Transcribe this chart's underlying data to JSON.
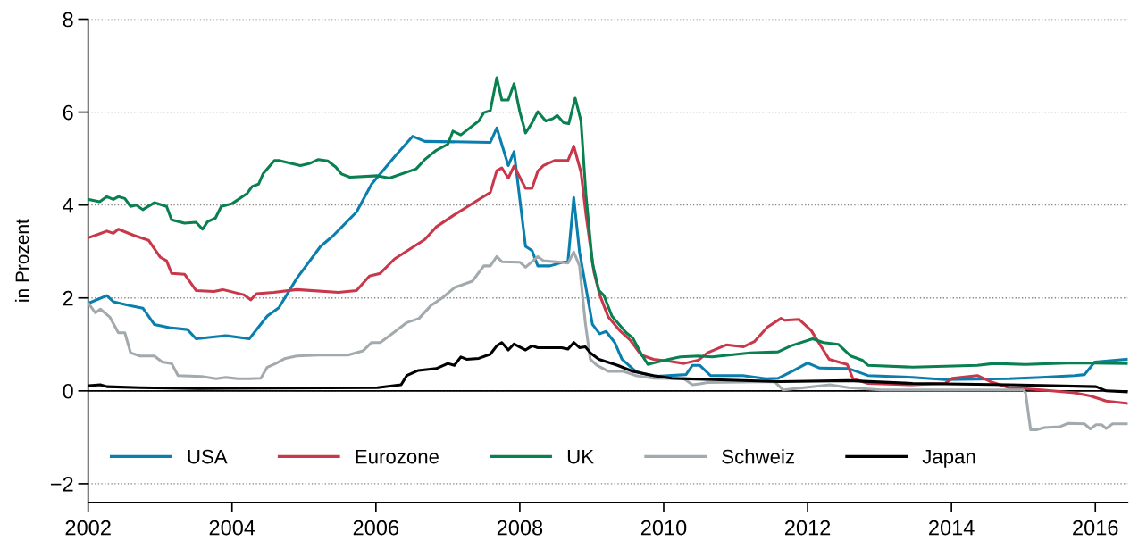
{
  "chart_data": {
    "type": "line",
    "ylabel": "in Prozent",
    "xlim": [
      2002,
      2016.45
    ],
    "ylim": [
      -2.4,
      8
    ],
    "xticks": [
      2002,
      2004,
      2006,
      2008,
      2010,
      2012,
      2014,
      2016
    ],
    "yticks": [
      {
        "value": -2,
        "label": "−2"
      },
      0,
      2,
      4,
      6,
      8
    ],
    "grid": "y",
    "legend": "bottom left",
    "line_style": "solid",
    "ref_lines": [
      {
        "axis": "y",
        "value": 0,
        "label": null,
        "color": "#000000",
        "line_style": "solid"
      }
    ],
    "series": [
      {
        "name": "USA",
        "color": "#0a7fae",
        "x": [
          2002.01,
          2002.26,
          2002.35,
          2002.59,
          2002.76,
          2002.92,
          2003.13,
          2003.38,
          2003.5,
          2003.91,
          2004.24,
          2004.49,
          2004.65,
          2004.9,
          2005.23,
          2005.4,
          2005.73,
          2005.94,
          2006.26,
          2006.51,
          2006.68,
          2007.59,
          2007.68,
          2007.84,
          2007.92,
          2008.08,
          2008.17,
          2008.25,
          2008.42,
          2008.67,
          2008.75,
          2008.83,
          2009.01,
          2009.11,
          2009.2,
          2009.32,
          2009.42,
          2009.61,
          2009.86,
          2010.31,
          2010.4,
          2010.5,
          2010.65,
          2011.1,
          2011.42,
          2011.59,
          2011.81,
          2012.0,
          2012.17,
          2012.57,
          2012.84,
          2013.46,
          2013.91,
          2014.8,
          2015.25,
          2015.71,
          2015.85,
          2015.99,
          2016.28,
          2016.45
        ],
        "values": [
          1.89,
          2.05,
          1.92,
          1.83,
          1.78,
          1.43,
          1.36,
          1.32,
          1.12,
          1.19,
          1.12,
          1.61,
          1.79,
          2.42,
          3.11,
          3.33,
          3.85,
          4.45,
          5.04,
          5.48,
          5.37,
          5.35,
          5.66,
          4.85,
          5.15,
          3.11,
          3.02,
          2.69,
          2.69,
          2.8,
          4.16,
          2.99,
          1.43,
          1.23,
          1.28,
          1.04,
          0.68,
          0.42,
          0.31,
          0.35,
          0.55,
          0.55,
          0.33,
          0.33,
          0.26,
          0.27,
          0.44,
          0.6,
          0.49,
          0.48,
          0.33,
          0.29,
          0.24,
          0.26,
          0.29,
          0.33,
          0.35,
          0.62,
          0.66,
          0.68
        ]
      },
      {
        "name": "Eurozone",
        "color": "#c8374a",
        "x": [
          2002.01,
          2002.14,
          2002.26,
          2002.35,
          2002.42,
          2002.63,
          2002.84,
          2003.0,
          2003.09,
          2003.16,
          2003.34,
          2003.5,
          2003.75,
          2003.87,
          2004.16,
          2004.26,
          2004.34,
          2004.58,
          2004.9,
          2005.48,
          2005.73,
          2005.91,
          2006.06,
          2006.26,
          2006.68,
          2006.84,
          2007.09,
          2007.43,
          2007.59,
          2007.68,
          2007.75,
          2007.84,
          2007.92,
          2008.08,
          2008.17,
          2008.25,
          2008.33,
          2008.49,
          2008.67,
          2008.75,
          2008.85,
          2008.92,
          2009.03,
          2009.11,
          2009.23,
          2009.4,
          2009.53,
          2009.69,
          2009.86,
          2010.07,
          2010.28,
          2010.48,
          2010.61,
          2010.87,
          2011.11,
          2011.26,
          2011.44,
          2011.63,
          2011.68,
          2011.88,
          2012.05,
          2012.3,
          2012.55,
          2012.63,
          2012.84,
          2013.46,
          2013.91,
          2014.01,
          2014.36,
          2014.54,
          2014.8,
          2015.25,
          2015.71,
          2015.93,
          2016.15,
          2016.45
        ],
        "values": [
          3.3,
          3.37,
          3.44,
          3.39,
          3.48,
          3.35,
          3.24,
          2.88,
          2.8,
          2.53,
          2.51,
          2.16,
          2.14,
          2.18,
          2.07,
          1.96,
          2.09,
          2.12,
          2.18,
          2.12,
          2.16,
          2.47,
          2.53,
          2.84,
          3.26,
          3.53,
          3.79,
          4.12,
          4.27,
          4.74,
          4.8,
          4.58,
          4.84,
          4.36,
          4.36,
          4.73,
          4.85,
          4.96,
          4.96,
          5.27,
          4.71,
          3.79,
          2.56,
          2.07,
          1.59,
          1.28,
          1.1,
          0.77,
          0.68,
          0.64,
          0.59,
          0.66,
          0.82,
          0.99,
          0.95,
          1.06,
          1.37,
          1.56,
          1.52,
          1.54,
          1.3,
          0.68,
          0.57,
          0.26,
          0.16,
          0.13,
          0.16,
          0.27,
          0.33,
          0.2,
          0.07,
          0.02,
          -0.04,
          -0.11,
          -0.22,
          -0.27
        ]
      },
      {
        "name": "UK",
        "color": "#0a8050",
        "x": [
          2002.01,
          2002.16,
          2002.26,
          2002.35,
          2002.42,
          2002.51,
          2002.59,
          2002.67,
          2002.76,
          2002.92,
          2003.09,
          2003.16,
          2003.34,
          2003.5,
          2003.59,
          2003.66,
          2003.77,
          2003.85,
          2004.0,
          2004.21,
          2004.28,
          2004.37,
          2004.43,
          2004.59,
          2004.65,
          2004.95,
          2005.07,
          2005.2,
          2005.33,
          2005.44,
          2005.52,
          2005.64,
          2006.02,
          2006.19,
          2006.56,
          2006.68,
          2006.84,
          2007.0,
          2007.07,
          2007.18,
          2007.43,
          2007.5,
          2007.59,
          2007.68,
          2007.75,
          2007.84,
          2007.92,
          2008.0,
          2008.08,
          2008.17,
          2008.25,
          2008.36,
          2008.46,
          2008.52,
          2008.61,
          2008.68,
          2008.77,
          2008.85,
          2008.92,
          2009.01,
          2009.1,
          2009.17,
          2009.28,
          2009.48,
          2009.57,
          2009.69,
          2009.78,
          2009.86,
          2010.07,
          2010.23,
          2010.48,
          2010.67,
          2011.2,
          2011.59,
          2011.77,
          2012.07,
          2012.22,
          2012.43,
          2012.6,
          2012.76,
          2012.84,
          2013.46,
          2014.36,
          2014.59,
          2015.03,
          2015.6,
          2015.93,
          2016.45
        ],
        "values": [
          4.12,
          4.07,
          4.18,
          4.12,
          4.18,
          4.14,
          3.97,
          4.0,
          3.9,
          4.05,
          3.97,
          3.68,
          3.61,
          3.63,
          3.48,
          3.64,
          3.72,
          3.97,
          4.03,
          4.25,
          4.4,
          4.45,
          4.67,
          4.96,
          4.96,
          4.85,
          4.89,
          4.98,
          4.95,
          4.82,
          4.67,
          4.6,
          4.63,
          4.58,
          4.78,
          4.98,
          5.18,
          5.31,
          5.59,
          5.51,
          5.81,
          5.99,
          6.03,
          6.74,
          6.26,
          6.26,
          6.61,
          6.01,
          5.55,
          5.77,
          6.01,
          5.81,
          5.86,
          5.93,
          5.77,
          5.75,
          6.3,
          5.81,
          4.21,
          2.75,
          2.16,
          2.05,
          1.61,
          1.25,
          1.14,
          0.79,
          0.57,
          0.6,
          0.68,
          0.73,
          0.75,
          0.73,
          0.82,
          0.84,
          0.97,
          1.12,
          1.04,
          1.0,
          0.75,
          0.66,
          0.55,
          0.51,
          0.55,
          0.59,
          0.57,
          0.6,
          0.6,
          0.59
        ]
      },
      {
        "name": "Schweiz",
        "color": "#a3aaae",
        "x": [
          2002.01,
          2002.1,
          2002.17,
          2002.3,
          2002.42,
          2002.51,
          2002.59,
          2002.72,
          2002.92,
          2003.03,
          2003.16,
          2003.25,
          2003.58,
          2003.78,
          2003.91,
          2004.08,
          2004.24,
          2004.4,
          2004.49,
          2004.61,
          2004.74,
          2004.9,
          2005.2,
          2005.61,
          2005.82,
          2005.94,
          2006.06,
          2006.19,
          2006.43,
          2006.6,
          2006.76,
          2006.93,
          2007.09,
          2007.34,
          2007.5,
          2007.59,
          2007.68,
          2007.75,
          2008.0,
          2008.08,
          2008.25,
          2008.33,
          2008.57,
          2008.67,
          2008.75,
          2008.83,
          2008.91,
          2008.98,
          2009.07,
          2009.23,
          2009.44,
          2009.61,
          2009.86,
          2010.28,
          2010.4,
          2010.5,
          2010.61,
          2011.54,
          2011.66,
          2011.95,
          2012.31,
          2012.57,
          2013.02,
          2015.0,
          2015.03,
          2015.1,
          2015.18,
          2015.29,
          2015.51,
          2015.62,
          2015.85,
          2015.93,
          2016.01,
          2016.09,
          2016.15,
          2016.24,
          2016.45
        ],
        "values": [
          1.87,
          1.68,
          1.76,
          1.59,
          1.25,
          1.25,
          0.82,
          0.75,
          0.75,
          0.62,
          0.59,
          0.33,
          0.31,
          0.26,
          0.29,
          0.26,
          0.26,
          0.27,
          0.51,
          0.59,
          0.7,
          0.75,
          0.77,
          0.77,
          0.86,
          1.04,
          1.04,
          1.19,
          1.47,
          1.56,
          1.83,
          2.01,
          2.22,
          2.36,
          2.69,
          2.69,
          2.89,
          2.78,
          2.77,
          2.66,
          2.89,
          2.8,
          2.77,
          2.75,
          2.99,
          2.69,
          1.47,
          0.68,
          0.55,
          0.42,
          0.42,
          0.33,
          0.27,
          0.26,
          0.13,
          0.15,
          0.18,
          0.2,
          0.02,
          0.07,
          0.13,
          0.07,
          0.02,
          0.02,
          -0.04,
          -0.84,
          -0.84,
          -0.79,
          -0.77,
          -0.7,
          -0.71,
          -0.82,
          -0.73,
          -0.73,
          -0.81,
          -0.71,
          -0.71
        ]
      },
      {
        "name": "Japan",
        "color": "#000000",
        "x": [
          2002.01,
          2002.17,
          2002.26,
          2002.72,
          2003.54,
          2006.02,
          2006.35,
          2006.43,
          2006.59,
          2006.84,
          2007.0,
          2007.09,
          2007.18,
          2007.26,
          2007.43,
          2007.59,
          2007.68,
          2007.75,
          2007.84,
          2007.92,
          2008.08,
          2008.17,
          2008.25,
          2008.58,
          2008.67,
          2008.75,
          2008.83,
          2008.91,
          2008.98,
          2009.1,
          2009.36,
          2009.57,
          2009.86,
          2010.11,
          2010.69,
          2011.62,
          2012.57,
          2013.46,
          2014.8,
          2016.01,
          2016.15,
          2016.45
        ],
        "values": [
          0.11,
          0.13,
          0.09,
          0.07,
          0.05,
          0.07,
          0.13,
          0.33,
          0.44,
          0.48,
          0.59,
          0.55,
          0.73,
          0.68,
          0.7,
          0.79,
          0.97,
          1.04,
          0.88,
          1.01,
          0.88,
          0.97,
          0.93,
          0.93,
          0.9,
          1.04,
          0.93,
          0.95,
          0.82,
          0.68,
          0.55,
          0.42,
          0.33,
          0.27,
          0.24,
          0.2,
          0.22,
          0.16,
          0.13,
          0.09,
          0.0,
          -0.02
        ]
      }
    ]
  }
}
